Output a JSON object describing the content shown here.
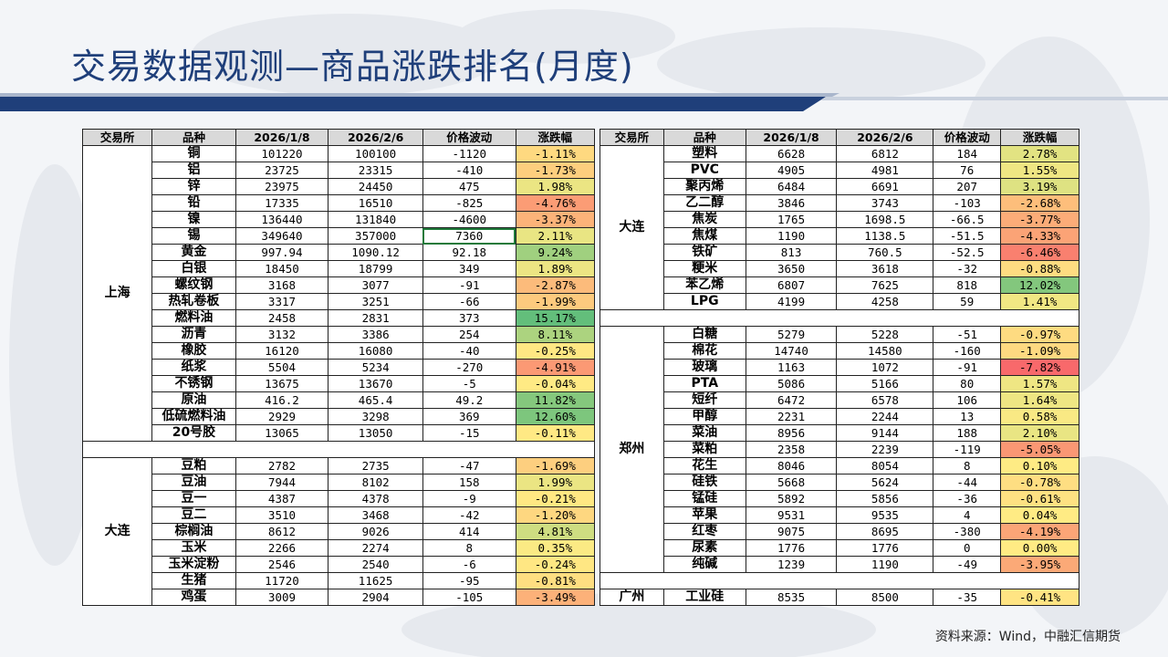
{
  "title": "交易数据观测—商品涨跌排名(月度)",
  "source": "资料来源：Wind，中融汇信期货",
  "headers": [
    "交易所",
    "品种",
    "2026/1/8",
    "2026/2/6",
    "价格波动",
    "涨跌幅"
  ],
  "left_groups": [
    {
      "exchange": "上海",
      "rows": [
        [
          "铜",
          "101220",
          "100100",
          "-1120",
          "-1.11%"
        ],
        [
          "铝",
          "23725",
          "23315",
          "-410",
          "-1.73%"
        ],
        [
          "锌",
          "23975",
          "24450",
          "475",
          "1.98%"
        ],
        [
          "铅",
          "17335",
          "16510",
          "-825",
          "-4.76%"
        ],
        [
          "镍",
          "136440",
          "131840",
          "-4600",
          "-3.37%"
        ],
        [
          "锡",
          "349640",
          "357000",
          "7360",
          "2.11%"
        ],
        [
          "黄金",
          "997.94",
          "1090.12",
          "92.18",
          "9.24%"
        ],
        [
          "白银",
          "18450",
          "18799",
          "349",
          "1.89%"
        ],
        [
          "螺纹钢",
          "3168",
          "3077",
          "-91",
          "-2.87%"
        ],
        [
          "热轧卷板",
          "3317",
          "3251",
          "-66",
          "-1.99%"
        ],
        [
          "燃料油",
          "2458",
          "2831",
          "373",
          "15.17%"
        ],
        [
          "沥青",
          "3132",
          "3386",
          "254",
          "8.11%"
        ],
        [
          "橡胶",
          "16120",
          "16080",
          "-40",
          "-0.25%"
        ],
        [
          "纸浆",
          "5504",
          "5234",
          "-270",
          "-4.91%"
        ],
        [
          "不锈钢",
          "13675",
          "13670",
          "-5",
          "-0.04%"
        ],
        [
          "原油",
          "416.2",
          "465.4",
          "49.2",
          "11.82%"
        ],
        [
          "低硫燃料油",
          "2929",
          "3298",
          "369",
          "12.60%"
        ],
        [
          "20号胶",
          "13065",
          "13050",
          "-15",
          "-0.11%"
        ]
      ]
    },
    {
      "exchange": "大连",
      "rows": [
        [
          "豆粕",
          "2782",
          "2735",
          "-47",
          "-1.69%"
        ],
        [
          "豆油",
          "7944",
          "8102",
          "158",
          "1.99%"
        ],
        [
          "豆一",
          "4387",
          "4378",
          "-9",
          "-0.21%"
        ],
        [
          "豆二",
          "3510",
          "3468",
          "-42",
          "-1.20%"
        ],
        [
          "棕榈油",
          "8612",
          "9026",
          "414",
          "4.81%"
        ],
        [
          "玉米",
          "2266",
          "2274",
          "8",
          "0.35%"
        ],
        [
          "玉米淀粉",
          "2546",
          "2540",
          "-6",
          "-0.24%"
        ],
        [
          "生猪",
          "11720",
          "11625",
          "-95",
          "-0.81%"
        ],
        [
          "鸡蛋",
          "3009",
          "2904",
          "-105",
          "-3.49%"
        ]
      ]
    }
  ],
  "right_groups": [
    {
      "exchange": "大连",
      "rows": [
        [
          "塑料",
          "6628",
          "6812",
          "184",
          "2.78%"
        ],
        [
          "PVC",
          "4905",
          "4981",
          "76",
          "1.55%"
        ],
        [
          "聚丙烯",
          "6484",
          "6691",
          "207",
          "3.19%"
        ],
        [
          "乙二醇",
          "3846",
          "3743",
          "-103",
          "-2.68%"
        ],
        [
          "焦炭",
          "1765",
          "1698.5",
          "-66.5",
          "-3.77%"
        ],
        [
          "焦煤",
          "1190",
          "1138.5",
          "-51.5",
          "-4.33%"
        ],
        [
          "铁矿",
          "813",
          "760.5",
          "-52.5",
          "-6.46%"
        ],
        [
          "粳米",
          "3650",
          "3618",
          "-32",
          "-0.88%"
        ],
        [
          "苯乙烯",
          "6807",
          "7625",
          "818",
          "12.02%"
        ],
        [
          "LPG",
          "4199",
          "4258",
          "59",
          "1.41%"
        ]
      ]
    },
    {
      "exchange": "郑州",
      "rows": [
        [
          "白糖",
          "5279",
          "5228",
          "-51",
          "-0.97%"
        ],
        [
          "棉花",
          "14740",
          "14580",
          "-160",
          "-1.09%"
        ],
        [
          "玻璃",
          "1163",
          "1072",
          "-91",
          "-7.82%"
        ],
        [
          "PTA",
          "5086",
          "5166",
          "80",
          "1.57%"
        ],
        [
          "短纤",
          "6472",
          "6578",
          "106",
          "1.64%"
        ],
        [
          "甲醇",
          "2231",
          "2244",
          "13",
          "0.58%"
        ],
        [
          "菜油",
          "8956",
          "9144",
          "188",
          "2.10%"
        ],
        [
          "菜粕",
          "2358",
          "2239",
          "-119",
          "-5.05%"
        ],
        [
          "花生",
          "8046",
          "8054",
          "8",
          "0.10%"
        ],
        [
          "硅铁",
          "5668",
          "5624",
          "-44",
          "-0.78%"
        ],
        [
          "锰硅",
          "5892",
          "5856",
          "-36",
          "-0.61%"
        ],
        [
          "苹果",
          "9531",
          "9535",
          "4",
          "0.04%"
        ],
        [
          "红枣",
          "9075",
          "8695",
          "-380",
          "-4.19%"
        ],
        [
          "尿素",
          "1776",
          "1776",
          "0",
          "0.00%"
        ],
        [
          "纯碱",
          "1239",
          "1190",
          "-49",
          "-3.95%"
        ]
      ]
    },
    {
      "exchange": "广州",
      "rows": [
        [
          "工业硅",
          "8535",
          "8500",
          "-35",
          "-0.41%"
        ]
      ]
    }
  ],
  "colors": {
    "title": "#1f3f7a",
    "neg_strong": "#f8696b",
    "neutral": "#ffeb84",
    "pos_strong": "#63be7b"
  }
}
